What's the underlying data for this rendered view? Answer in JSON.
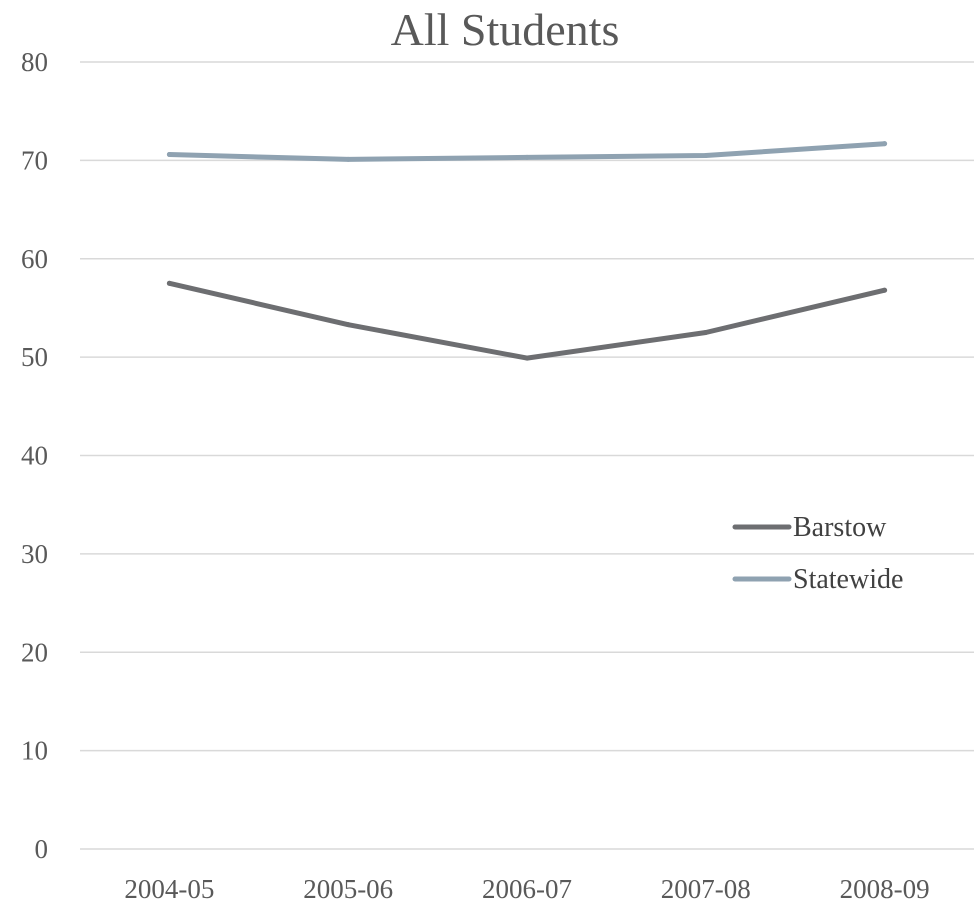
{
  "chart_data": {
    "type": "line",
    "title": "All Students",
    "xlabel": "",
    "ylabel": "",
    "categories": [
      "2004-05",
      "2005-06",
      "2006-07",
      "2007-08",
      "2008-09"
    ],
    "ylim": [
      0,
      80
    ],
    "yticks": [
      0,
      10,
      20,
      30,
      40,
      50,
      60,
      70,
      80
    ],
    "grid": true,
    "legend_position": "right",
    "series": [
      {
        "name": "Barstow",
        "color": "#6d6e71",
        "values": [
          57.5,
          53.3,
          49.9,
          52.5,
          56.8
        ]
      },
      {
        "name": "Statewide",
        "color": "#8fa2b1",
        "values": [
          70.6,
          70.1,
          70.3,
          70.5,
          71.7
        ]
      }
    ]
  }
}
